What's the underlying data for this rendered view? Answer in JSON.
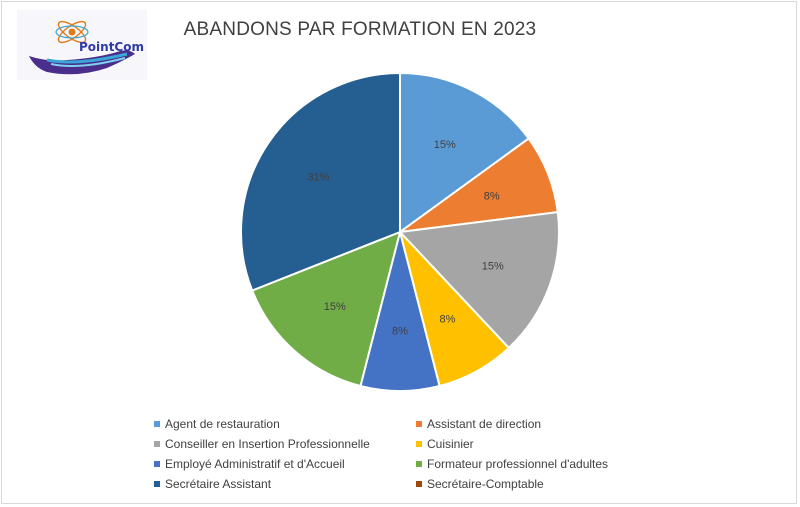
{
  "logo": {
    "text": "PointCom",
    "colors": {
      "text": "#2f3aa8",
      "hand": "#4b2d8c",
      "wave": "#39a6d6",
      "atom": "#e07b1a"
    }
  },
  "chart_data": {
    "type": "pie",
    "title": "ABANDONS PAR FORMATION EN 2023",
    "start_angle_deg": 0,
    "direction": "clockwise",
    "legend_position": "bottom",
    "slices": [
      {
        "label": "Agent de restauration",
        "value": 15,
        "display": "15%",
        "color": "#5b9bd5"
      },
      {
        "label": "Assistant de direction",
        "value": 8,
        "display": "8%",
        "color": "#ed7d31"
      },
      {
        "label": "Conseiller en Insertion Professionnelle",
        "value": 15,
        "display": "15%",
        "color": "#a5a5a5"
      },
      {
        "label": "Cuisinier",
        "value": 8,
        "display": "8%",
        "color": "#ffc000"
      },
      {
        "label": "Employé Administratif et d'Accueil",
        "value": 8,
        "display": "8%",
        "color": "#4472c4"
      },
      {
        "label": "Formateur professionnel d'adultes",
        "value": 15,
        "display": "15%",
        "color": "#70ad47"
      },
      {
        "label": "Secrétaire Assistant",
        "value": 31,
        "display": "31%",
        "color": "#255e91"
      },
      {
        "label": "Secrétaire-Comptable",
        "value": 0,
        "display": "",
        "color": "#9e480e"
      }
    ]
  }
}
